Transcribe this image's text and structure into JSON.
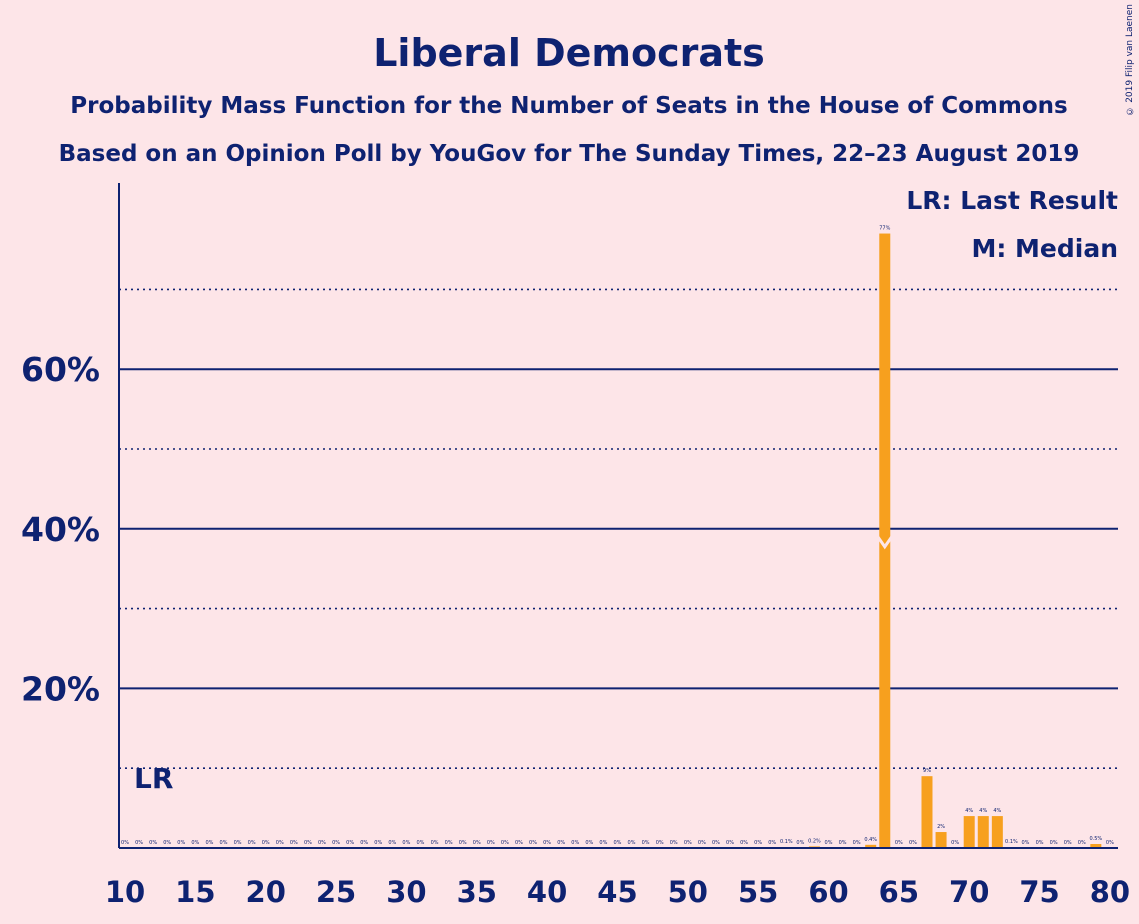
{
  "title": "Liberal Democrats",
  "subtitle1": "Probability Mass Function for the Number of Seats in the House of Commons",
  "subtitle2": "Based on an Opinion Poll by YouGov for The Sunday Times, 22–23 August 2019",
  "copyright": "© 2019 Filip van Laenen",
  "legend": {
    "lr": "LR: Last Result",
    "m": "M: Median"
  },
  "lr_marker": "LR",
  "colors": {
    "background": "#FDE5E8",
    "ink": "#0E2271",
    "bar": "#F7A01E"
  },
  "chart_data": {
    "type": "bar",
    "xlim": [
      10,
      80
    ],
    "ylim": [
      0,
      80
    ],
    "x_ticks": [
      10,
      15,
      20,
      25,
      30,
      35,
      40,
      45,
      50,
      55,
      60,
      65,
      70,
      75,
      80
    ],
    "y_ticks_major": [
      20,
      40,
      60
    ],
    "y_tick_labels": [
      "20%",
      "40%",
      "60%"
    ],
    "y_ticks_minor": [
      10,
      30,
      50,
      70
    ],
    "last_result": 12,
    "median": 64,
    "bars": [
      {
        "x": 10,
        "value": 0,
        "label": "0%"
      },
      {
        "x": 11,
        "value": 0,
        "label": "0%"
      },
      {
        "x": 12,
        "value": 0,
        "label": "0%"
      },
      {
        "x": 13,
        "value": 0,
        "label": "0%"
      },
      {
        "x": 14,
        "value": 0,
        "label": "0%"
      },
      {
        "x": 15,
        "value": 0,
        "label": "0%"
      },
      {
        "x": 16,
        "value": 0,
        "label": "0%"
      },
      {
        "x": 17,
        "value": 0,
        "label": "0%"
      },
      {
        "x": 18,
        "value": 0,
        "label": "0%"
      },
      {
        "x": 19,
        "value": 0,
        "label": "0%"
      },
      {
        "x": 20,
        "value": 0,
        "label": "0%"
      },
      {
        "x": 21,
        "value": 0,
        "label": "0%"
      },
      {
        "x": 22,
        "value": 0,
        "label": "0%"
      },
      {
        "x": 23,
        "value": 0,
        "label": "0%"
      },
      {
        "x": 24,
        "value": 0,
        "label": "0%"
      },
      {
        "x": 25,
        "value": 0,
        "label": "0%"
      },
      {
        "x": 26,
        "value": 0,
        "label": "0%"
      },
      {
        "x": 27,
        "value": 0,
        "label": "0%"
      },
      {
        "x": 28,
        "value": 0,
        "label": "0%"
      },
      {
        "x": 29,
        "value": 0,
        "label": "0%"
      },
      {
        "x": 30,
        "value": 0,
        "label": "0%"
      },
      {
        "x": 31,
        "value": 0,
        "label": "0%"
      },
      {
        "x": 32,
        "value": 0,
        "label": "0%"
      },
      {
        "x": 33,
        "value": 0,
        "label": "0%"
      },
      {
        "x": 34,
        "value": 0,
        "label": "0%"
      },
      {
        "x": 35,
        "value": 0,
        "label": "0%"
      },
      {
        "x": 36,
        "value": 0,
        "label": "0%"
      },
      {
        "x": 37,
        "value": 0,
        "label": "0%"
      },
      {
        "x": 38,
        "value": 0,
        "label": "0%"
      },
      {
        "x": 39,
        "value": 0,
        "label": "0%"
      },
      {
        "x": 40,
        "value": 0,
        "label": "0%"
      },
      {
        "x": 41,
        "value": 0,
        "label": "0%"
      },
      {
        "x": 42,
        "value": 0,
        "label": "0%"
      },
      {
        "x": 43,
        "value": 0,
        "label": "0%"
      },
      {
        "x": 44,
        "value": 0,
        "label": "0%"
      },
      {
        "x": 45,
        "value": 0,
        "label": "0%"
      },
      {
        "x": 46,
        "value": 0,
        "label": "0%"
      },
      {
        "x": 47,
        "value": 0,
        "label": "0%"
      },
      {
        "x": 48,
        "value": 0,
        "label": "0%"
      },
      {
        "x": 49,
        "value": 0,
        "label": "0%"
      },
      {
        "x": 50,
        "value": 0,
        "label": "0%"
      },
      {
        "x": 51,
        "value": 0,
        "label": "0%"
      },
      {
        "x": 52,
        "value": 0,
        "label": "0%"
      },
      {
        "x": 53,
        "value": 0,
        "label": "0%"
      },
      {
        "x": 54,
        "value": 0,
        "label": "0%"
      },
      {
        "x": 55,
        "value": 0,
        "label": "0%"
      },
      {
        "x": 56,
        "value": 0,
        "label": "0%"
      },
      {
        "x": 57,
        "value": 0.1,
        "label": "0.1%"
      },
      {
        "x": 58,
        "value": 0,
        "label": "0%"
      },
      {
        "x": 59,
        "value": 0.2,
        "label": "0.2%"
      },
      {
        "x": 60,
        "value": 0,
        "label": "0%"
      },
      {
        "x": 61,
        "value": 0,
        "label": "0%"
      },
      {
        "x": 62,
        "value": 0,
        "label": "0%"
      },
      {
        "x": 63,
        "value": 0.4,
        "label": "0.4%"
      },
      {
        "x": 64,
        "value": 77,
        "label": "77%"
      },
      {
        "x": 65,
        "value": 0,
        "label": "0%"
      },
      {
        "x": 66,
        "value": 0,
        "label": "0%"
      },
      {
        "x": 67,
        "value": 9,
        "label": "9%"
      },
      {
        "x": 68,
        "value": 2,
        "label": "2%"
      },
      {
        "x": 69,
        "value": 0,
        "label": "0%"
      },
      {
        "x": 70,
        "value": 4,
        "label": "4%"
      },
      {
        "x": 71,
        "value": 4,
        "label": "4%"
      },
      {
        "x": 72,
        "value": 4,
        "label": "4%"
      },
      {
        "x": 73,
        "value": 0.1,
        "label": "0.1%"
      },
      {
        "x": 74,
        "value": 0,
        "label": "0%"
      },
      {
        "x": 75,
        "value": 0,
        "label": "0%"
      },
      {
        "x": 76,
        "value": 0,
        "label": "0%"
      },
      {
        "x": 77,
        "value": 0,
        "label": "0%"
      },
      {
        "x": 78,
        "value": 0,
        "label": "0%"
      },
      {
        "x": 79,
        "value": 0.5,
        "label": "0.5%"
      },
      {
        "x": 80,
        "value": 0,
        "label": "0%"
      }
    ]
  }
}
